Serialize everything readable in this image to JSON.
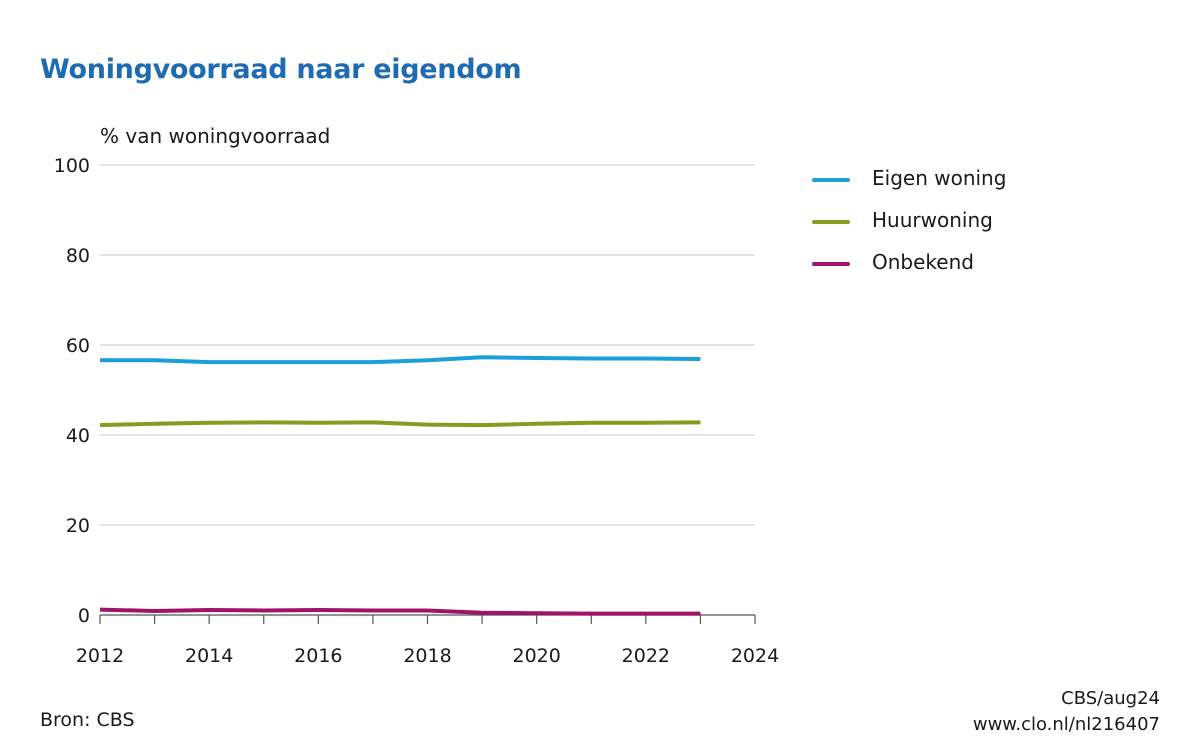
{
  "chart_data": {
    "type": "line",
    "title": "Woningvoorraad naar eigendom",
    "ylabel": "% van woningvoorraad",
    "xlabel": "",
    "xlim": [
      2012,
      2024
    ],
    "ylim": [
      0,
      100
    ],
    "x_ticks": [
      2012,
      2014,
      2016,
      2018,
      2020,
      2022,
      2024
    ],
    "y_ticks": [
      0,
      20,
      40,
      60,
      80,
      100
    ],
    "grid": "horizontal",
    "legend_position": "right",
    "x": [
      2012,
      2013,
      2014,
      2015,
      2016,
      2017,
      2018,
      2019,
      2020,
      2021,
      2022,
      2023
    ],
    "series": [
      {
        "name": "Eigen woning",
        "color": "#1a9fdb",
        "values": [
          56.6,
          56.6,
          56.2,
          56.2,
          56.2,
          56.2,
          56.6,
          57.3,
          57.1,
          57.0,
          57.0,
          56.9
        ]
      },
      {
        "name": "Huurwoning",
        "color": "#8a9a1f",
        "values": [
          42.2,
          42.5,
          42.7,
          42.8,
          42.7,
          42.8,
          42.3,
          42.2,
          42.5,
          42.7,
          42.7,
          42.8
        ]
      },
      {
        "name": "Onbekend",
        "color": "#a0136b",
        "values": [
          1.2,
          0.9,
          1.1,
          1.0,
          1.1,
          1.0,
          1.0,
          0.5,
          0.4,
          0.3,
          0.3,
          0.3
        ]
      }
    ]
  },
  "footer": {
    "source": "Bron: CBS",
    "credit_line1": "CBS/aug24",
    "credit_line2": "www.clo.nl/nl216407"
  }
}
